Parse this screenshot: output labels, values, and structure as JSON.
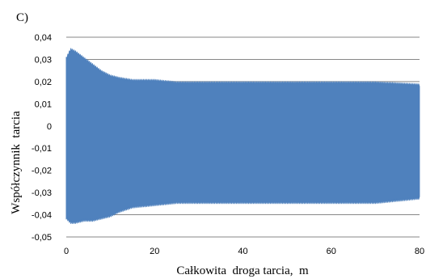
{
  "chart_data": {
    "type": "area",
    "panel_label": "C)",
    "title": "",
    "xlabel": "Całkowita  droga tarcia,  m",
    "ylabel": "Współczynnik  tarcia",
    "xlim": [
      0,
      80
    ],
    "ylim": [
      -0.05,
      0.04
    ],
    "x_ticks": [
      "0",
      "20",
      "40",
      "60",
      "80"
    ],
    "y_ticks": [
      "0,04",
      "0,03",
      "0,02",
      "0,01",
      "0",
      "-0,01",
      "-0,02",
      "-0,03",
      "-0,04",
      "-0,05"
    ],
    "grid": "horizontal",
    "legend": "none",
    "color": "#4f81bd",
    "series": [
      {
        "x": [
          0,
          1,
          2,
          4,
          6,
          8,
          10,
          12,
          15,
          20,
          25,
          30,
          40,
          50,
          60,
          70,
          80
        ],
        "upper": [
          0.031,
          0.035,
          0.034,
          0.031,
          0.028,
          0.025,
          0.023,
          0.022,
          0.021,
          0.021,
          0.02,
          0.02,
          0.02,
          0.02,
          0.02,
          0.02,
          0.019
        ],
        "lower": [
          -0.042,
          -0.044,
          -0.044,
          -0.043,
          -0.043,
          -0.042,
          -0.041,
          -0.039,
          -0.037,
          -0.036,
          -0.035,
          -0.035,
          -0.035,
          -0.035,
          -0.035,
          -0.035,
          -0.033
        ]
      }
    ]
  }
}
